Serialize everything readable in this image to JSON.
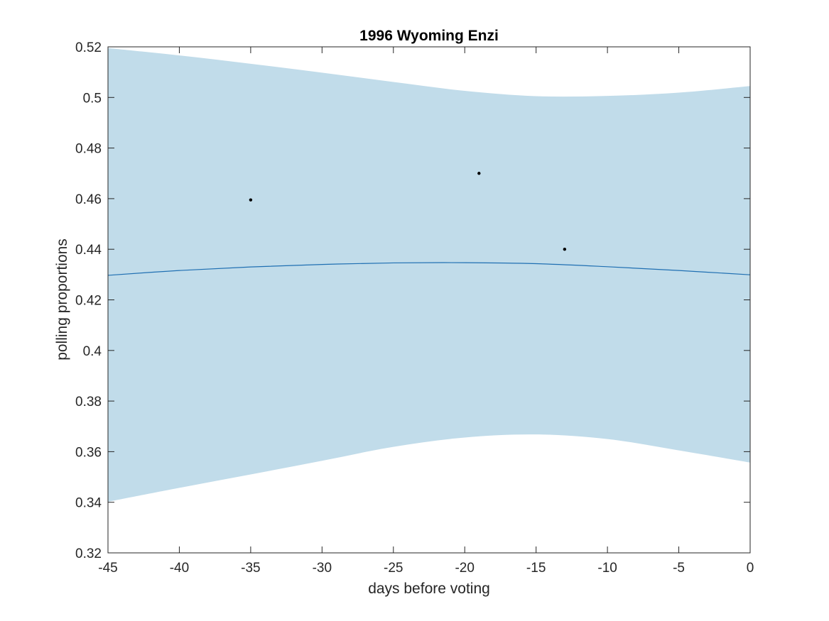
{
  "chart_data": {
    "type": "line",
    "title": "1996 Wyoming Enzi",
    "xlabel": "days before voting",
    "ylabel": "polling proportions",
    "xlim": [
      -45,
      0
    ],
    "ylim": [
      0.32,
      0.52
    ],
    "xticks": [
      -45,
      -40,
      -35,
      -30,
      -25,
      -20,
      -15,
      -10,
      -5,
      0
    ],
    "xtick_labels": [
      "-45",
      "-40",
      "-35",
      "-30",
      "-25",
      "-20",
      "-15",
      "-10",
      "-5",
      "0"
    ],
    "yticks": [
      0.32,
      0.34,
      0.36,
      0.38,
      0.4,
      0.42,
      0.44,
      0.46,
      0.48,
      0.5,
      0.52
    ],
    "ytick_labels": [
      "0.32",
      "0.34",
      "0.36",
      "0.38",
      "0.4",
      "0.42",
      "0.44",
      "0.46",
      "0.48",
      "0.5",
      "0.52"
    ],
    "grid": false,
    "colors": {
      "band": "#c1dcea",
      "line": "#1f6fb2",
      "points": "#000000",
      "axes": "#262626"
    },
    "series": [
      {
        "type": "area",
        "x": [
          -45,
          -40,
          -35,
          -30,
          -25,
          -20,
          -15,
          -10,
          -5,
          0
        ],
        "upper": [
          0.5195,
          0.5166,
          0.5133,
          0.5098,
          0.5061,
          0.5026,
          0.5005,
          0.5006,
          0.5019,
          0.5045
        ],
        "lower": [
          0.3402,
          0.3457,
          0.351,
          0.3564,
          0.3619,
          0.3656,
          0.3668,
          0.365,
          0.3605,
          0.3557
        ]
      },
      {
        "type": "line",
        "x": [
          -45,
          -40,
          -35,
          -30,
          -25,
          -20,
          -15,
          -10,
          -5,
          0
        ],
        "y": [
          0.4297,
          0.4316,
          0.433,
          0.434,
          0.4346,
          0.4347,
          0.4343,
          0.4331,
          0.4316,
          0.4299
        ]
      },
      {
        "type": "scatter",
        "x": [
          -35,
          -19,
          -13
        ],
        "y": [
          0.4595,
          0.47,
          0.44
        ]
      }
    ]
  }
}
